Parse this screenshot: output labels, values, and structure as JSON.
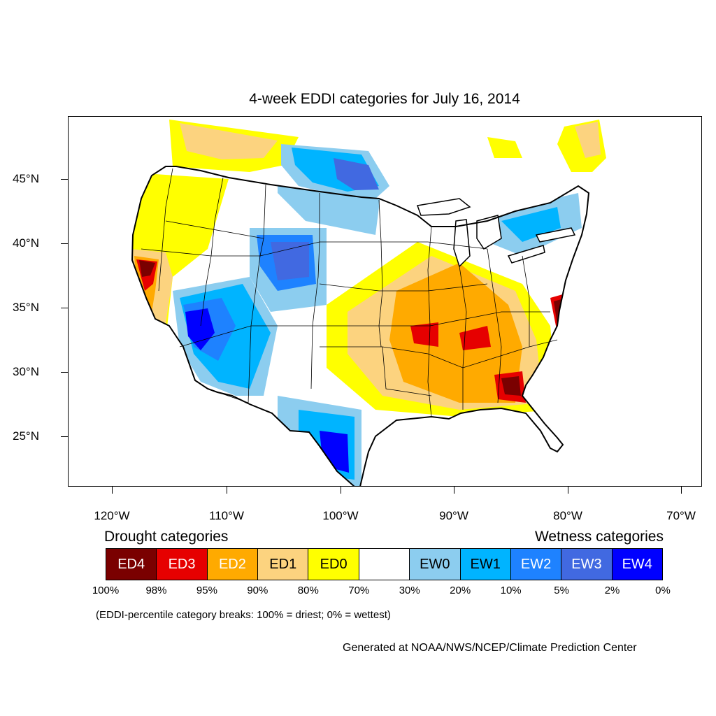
{
  "title": "4-week EDDI categories for July 16, 2014",
  "lat_labels": [
    "45°N",
    "40°N",
    "35°N",
    "30°N",
    "25°N"
  ],
  "lon_labels": [
    "120°W",
    "110°W",
    "100°W",
    "90°W",
    "80°W",
    "70°W"
  ],
  "legend": {
    "drought_heading": "Drought categories",
    "wetness_heading": "Wetness categories",
    "categories": [
      {
        "label": "ED4",
        "color": "#7a0000",
        "text_color": "#ffffff"
      },
      {
        "label": "ED3",
        "color": "#e60000",
        "text_color": "#ffffff"
      },
      {
        "label": "ED2",
        "color": "#ffaa00",
        "text_color": "#ffffff"
      },
      {
        "label": "ED1",
        "color": "#fcd37f",
        "text_color": "#000000"
      },
      {
        "label": "ED0",
        "color": "#ffff00",
        "text_color": "#000000"
      },
      {
        "label": "",
        "color": "#ffffff",
        "text_color": "#000000"
      },
      {
        "label": "EW0",
        "color": "#8ccdef",
        "text_color": "#000000"
      },
      {
        "label": "EW1",
        "color": "#00b4ff",
        "text_color": "#000000"
      },
      {
        "label": "EW2",
        "color": "#1e82ff",
        "text_color": "#ffffff"
      },
      {
        "label": "EW3",
        "color": "#4169e1",
        "text_color": "#ffffff"
      },
      {
        "label": "EW4",
        "color": "#0000ff",
        "text_color": "#ffffff"
      }
    ],
    "percent_breaks": [
      "100%",
      "98%",
      "95%",
      "90%",
      "80%",
      "70%",
      "30%",
      "20%",
      "10%",
      "5%",
      "2%",
      "0%"
    ]
  },
  "note": "(EDDI-percentile category breaks: 100% = driest; 0% = wettest)",
  "credit": "Generated at NOAA/NWS/NCEP/Climate Prediction Center"
}
